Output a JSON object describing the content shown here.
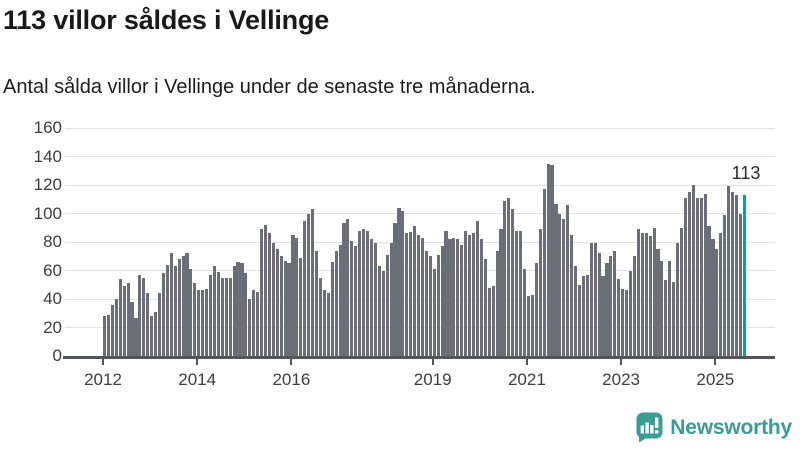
{
  "header": {
    "title": "113 villor såldes i Vellinge",
    "subtitle": "Antal sålda villor i Vellinge under de senaste tre månaderna."
  },
  "branding": {
    "logo_text": "Newsworthy",
    "logo_icon": "newsworthy-speech-bubble-bar-chart-icon",
    "logo_color": "#3B9C94"
  },
  "colors": {
    "bar": "#6D6D75",
    "highlight": "#00A49C",
    "grid": "#E2E2E2",
    "axis_line": "#54545C",
    "tick_text": "#3D3D3D"
  },
  "chart_data": {
    "type": "bar",
    "title": "113 villor såldes i Vellinge",
    "subtitle": "Antal sålda villor i Vellinge under de senaste tre månaderna.",
    "x_unit": "month",
    "x_start": "2012-01",
    "x_end": "2025-08",
    "ylim": [
      0,
      160
    ],
    "y_ticks": [
      0,
      20,
      40,
      60,
      80,
      100,
      120,
      140,
      160
    ],
    "grid": "horizontal",
    "legend": "none",
    "x_ticks": [
      {
        "label": "2012",
        "month_index": 0
      },
      {
        "label": "2014",
        "month_index": 24
      },
      {
        "label": "2016",
        "month_index": 48
      },
      {
        "label": "2019",
        "month_index": 84
      },
      {
        "label": "2021",
        "month_index": 108
      },
      {
        "label": "2023",
        "month_index": 132
      },
      {
        "label": "2025",
        "month_index": 156
      }
    ],
    "values": [
      28,
      29,
      36,
      40,
      54,
      49,
      51,
      38,
      27,
      57,
      55,
      44,
      28,
      31,
      44,
      58,
      64,
      72,
      63,
      68,
      70,
      72,
      61,
      51,
      46,
      46,
      47,
      57,
      63,
      59,
      55,
      55,
      55,
      63,
      66,
      65,
      58,
      40,
      46,
      45,
      89,
      92,
      86,
      79,
      75,
      70,
      67,
      65,
      85,
      83,
      69,
      95,
      100,
      103,
      74,
      55,
      46,
      44,
      66,
      74,
      78,
      93,
      96,
      81,
      77,
      88,
      89,
      88,
      82,
      79,
      63,
      60,
      71,
      79,
      93,
      104,
      102,
      86,
      87,
      91,
      85,
      83,
      74,
      70,
      61,
      71,
      77,
      88,
      82,
      83,
      82,
      78,
      88,
      85,
      86,
      95,
      82,
      68,
      48,
      49,
      74,
      89,
      109,
      111,
      103,
      88,
      88,
      61,
      42,
      43,
      65,
      89,
      117,
      135,
      134,
      107,
      100,
      96,
      106,
      85,
      63,
      50,
      56,
      57,
      79,
      79,
      72,
      56,
      65,
      70,
      74,
      54,
      47,
      46,
      60,
      70,
      89,
      86,
      86,
      84,
      90,
      75,
      67,
      53,
      67,
      52,
      79,
      90,
      111,
      115,
      120,
      111,
      111,
      114,
      91,
      82,
      75,
      86,
      99,
      119,
      115,
      113,
      100,
      113
    ],
    "highlight_last": true,
    "last_value_label": "113"
  }
}
